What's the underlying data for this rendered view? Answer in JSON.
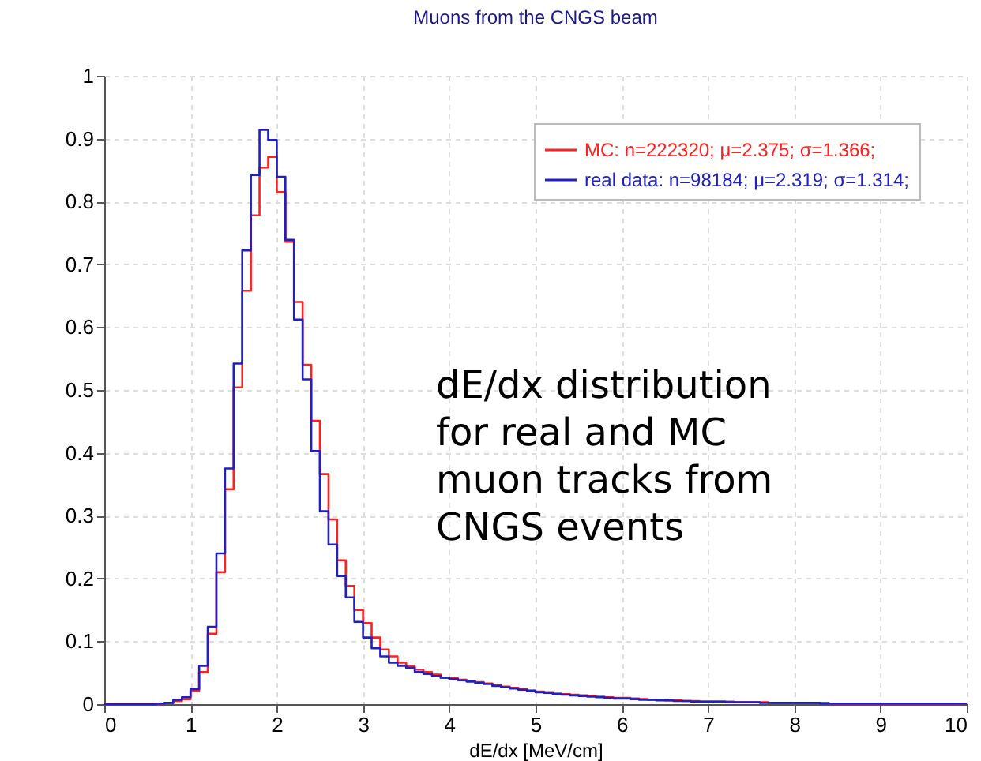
{
  "chart_data": {
    "type": "histogram",
    "title": "Muons from the CNGS beam",
    "xlabel": "dE/dx [MeV/cm]",
    "annotations": [
      "dE/dx distribution\nfor real and MC\nmuon tracks from\nCNGS events"
    ],
    "bins": [
      0,
      0.1,
      0.2,
      0.3,
      0.4,
      0.5,
      0.6,
      0.7,
      0.8,
      0.9,
      1,
      1.1,
      1.2,
      1.3,
      1.4,
      1.5,
      1.6,
      1.7,
      1.8,
      1.9,
      2,
      2.1,
      2.2,
      2.3,
      2.4,
      2.5,
      2.6,
      2.7,
      2.8,
      2.9,
      3,
      3.1,
      3.2,
      3.3,
      3.4,
      3.5,
      3.6,
      3.7,
      3.8,
      3.9,
      4,
      4.1,
      4.2,
      4.3,
      4.4,
      4.5,
      4.6,
      4.7,
      4.8,
      4.9,
      5,
      5.1,
      5.2,
      5.3,
      5.4,
      5.5,
      5.6,
      5.7,
      5.8,
      5.9,
      6,
      6.1,
      6.2,
      6.3,
      6.4,
      6.5,
      6.6,
      6.7,
      6.8,
      6.9,
      7,
      7.1,
      7.2,
      7.3,
      7.4,
      7.5,
      7.6,
      7.7,
      7.8,
      7.9,
      8,
      8.1,
      8.2,
      8.3,
      8.4,
      8.5,
      8.6,
      8.7,
      8.8,
      8.9,
      9,
      9.1,
      9.2,
      9.3,
      9.4,
      9.5,
      9.6,
      9.7,
      9.8,
      9.9,
      10
    ],
    "series": [
      {
        "name": "MC: n=222320; μ=2.375; σ=1.366;",
        "color": "#ff2020",
        "values": [
          0,
          0,
          0,
          0,
          0,
          0,
          0.001,
          0.002,
          0.005,
          0.008,
          0.021,
          0.051,
          0.112,
          0.21,
          0.342,
          0.504,
          0.658,
          0.778,
          0.854,
          0.871,
          0.815,
          0.736,
          0.64,
          0.54,
          0.451,
          0.366,
          0.294,
          0.229,
          0.188,
          0.15,
          0.129,
          0.106,
          0.087,
          0.076,
          0.066,
          0.061,
          0.055,
          0.051,
          0.047,
          0.042,
          0.041,
          0.039,
          0.037,
          0.035,
          0.033,
          0.03,
          0.028,
          0.026,
          0.024,
          0.022,
          0.02,
          0.019,
          0.017,
          0.016,
          0.015,
          0.014,
          0.013,
          0.012,
          0.011,
          0.01,
          0.01,
          0.009,
          0.008,
          0.007,
          0.007,
          0.006,
          0.006,
          0.005,
          0.005,
          0.004,
          0.004,
          0.004,
          0.004,
          0.003,
          0.003,
          0.003,
          0.003,
          0.002,
          0.002,
          0.002,
          0.002,
          0.002,
          0.002,
          0.002,
          0.001,
          0.001,
          0.001,
          0.001,
          0.001,
          0.001,
          0.001,
          0.001,
          0.001,
          0.001,
          0.001,
          0.001,
          0.001,
          0.001,
          0.001,
          0.001
        ]
      },
      {
        "name": "real data: n=98184; μ=2.319; σ=1.314;",
        "color": "#2020c0",
        "values": [
          0,
          0,
          0,
          0,
          0,
          0,
          0.001,
          0.002,
          0.007,
          0.011,
          0.024,
          0.061,
          0.123,
          0.24,
          0.375,
          0.542,
          0.722,
          0.842,
          0.914,
          0.898,
          0.839,
          0.739,
          0.612,
          0.517,
          0.403,
          0.307,
          0.254,
          0.204,
          0.17,
          0.131,
          0.106,
          0.089,
          0.076,
          0.066,
          0.061,
          0.058,
          0.051,
          0.048,
          0.045,
          0.042,
          0.04,
          0.038,
          0.036,
          0.034,
          0.032,
          0.029,
          0.027,
          0.025,
          0.023,
          0.021,
          0.019,
          0.018,
          0.016,
          0.015,
          0.014,
          0.013,
          0.012,
          0.011,
          0.01,
          0.009,
          0.009,
          0.008,
          0.007,
          0.007,
          0.006,
          0.006,
          0.005,
          0.005,
          0.004,
          0.004,
          0.004,
          0.004,
          0.003,
          0.003,
          0.003,
          0.003,
          0.002,
          0.002,
          0.002,
          0.002,
          0.002,
          0.002,
          0.002,
          0.001,
          0.001,
          0.001,
          0.001,
          0.001,
          0.001,
          0.001,
          0.001,
          0.001,
          0.001,
          0.001,
          0.001,
          0.001,
          0.001,
          0.001,
          0.001,
          0.001
        ]
      }
    ],
    "xlim": [
      0,
      10
    ],
    "xticks": [
      0,
      1,
      2,
      3,
      4,
      5,
      6,
      7,
      8,
      9,
      10
    ],
    "ylim": [
      0,
      1
    ],
    "yticks": [
      0,
      0.1,
      0.2,
      0.3,
      0.4,
      0.5,
      0.6,
      0.7,
      0.8,
      0.9,
      1
    ],
    "grid": true,
    "legend": "top right"
  }
}
